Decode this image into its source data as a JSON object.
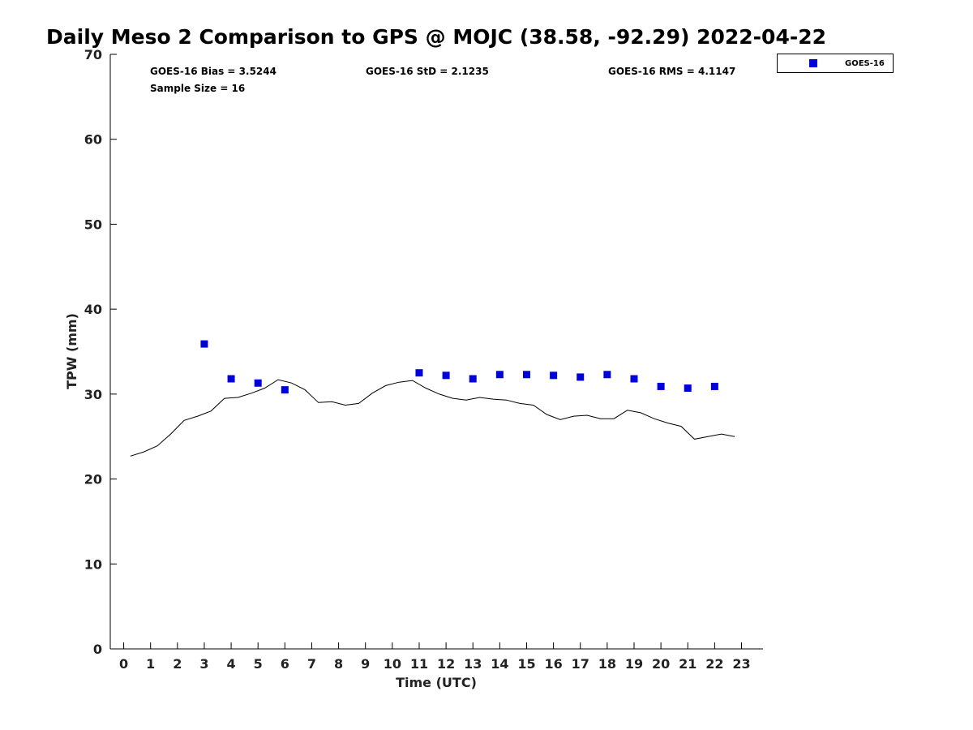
{
  "chart_data": {
    "type": "scatter",
    "title": "Daily Meso 2 Comparison to GPS @ MOJC (38.58, -92.29) 2022-04-22",
    "xlabel": "Time (UTC)",
    "ylabel": "TPW (mm)",
    "xlim": [
      -0.5,
      23.8
    ],
    "ylim": [
      0,
      70
    ],
    "x_ticks": [
      0,
      1,
      2,
      3,
      4,
      5,
      6,
      7,
      8,
      9,
      10,
      11,
      12,
      13,
      14,
      15,
      16,
      17,
      18,
      19,
      20,
      21,
      22,
      23
    ],
    "y_ticks": [
      0,
      10,
      20,
      30,
      40,
      50,
      60,
      70
    ],
    "grid": false,
    "legend_position": "top-right, outside plot",
    "stats": {
      "bias": "GOES-16 Bias = 3.5244",
      "std": "GOES-16 StD = 2.1235",
      "rms": "GOES-16 RMS = 4.1147",
      "sample_size": "Sample Size = 16"
    },
    "series": [
      {
        "name": "GOES-16",
        "style": "markers",
        "color": "#0000dd",
        "x": [
          3,
          4,
          5,
          6,
          11,
          12,
          13,
          14,
          15,
          16,
          17,
          18,
          19,
          20,
          21,
          22
        ],
        "y": [
          35.9,
          31.8,
          31.3,
          30.5,
          32.5,
          32.2,
          31.8,
          32.3,
          32.3,
          32.2,
          32.0,
          32.3,
          31.8,
          30.9,
          30.7,
          30.9
        ]
      },
      {
        "style": "line",
        "color": "#000000",
        "x": [
          0.25,
          0.75,
          1.25,
          1.75,
          2.25,
          2.75,
          3.25,
          3.75,
          4.25,
          4.75,
          5.25,
          5.75,
          6.25,
          6.75,
          7.25,
          7.75,
          8.25,
          8.75,
          9.25,
          9.75,
          10.25,
          10.75,
          11.25,
          11.75,
          12.25,
          12.75,
          13.25,
          13.75,
          14.25,
          14.75,
          15.25,
          15.75,
          16.25,
          16.75,
          17.25,
          17.75,
          18.25,
          18.75,
          19.25,
          19.75,
          20.25,
          20.75,
          21.25,
          21.75,
          22.25,
          22.75
        ],
        "y": [
          22.7,
          23.2,
          23.9,
          25.3,
          26.9,
          27.4,
          28.0,
          29.5,
          29.6,
          30.1,
          30.7,
          31.7,
          31.3,
          30.5,
          29.0,
          29.1,
          28.7,
          28.9,
          30.1,
          31.0,
          31.4,
          31.6,
          30.7,
          30.0,
          29.5,
          29.3,
          29.6,
          29.4,
          29.3,
          28.9,
          28.7,
          27.6,
          27.0,
          27.4,
          27.5,
          27.1,
          27.1,
          28.1,
          27.8,
          27.1,
          26.6,
          26.2,
          24.7,
          25.0,
          25.3,
          25.0
        ]
      }
    ]
  }
}
